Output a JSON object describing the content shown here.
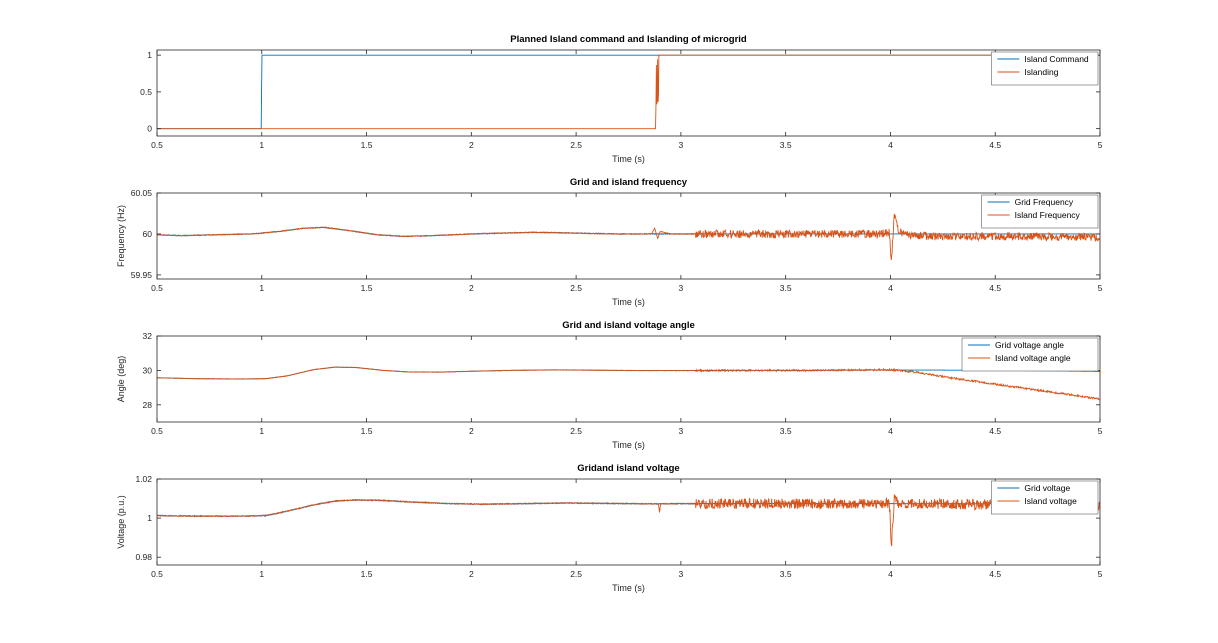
{
  "figure": {
    "background": "#ffffff"
  },
  "palette": {
    "series_blue": "#0072BD",
    "series_orange": "#D95319",
    "axis_color": "#262626",
    "title_color": "#000000",
    "legend_border": "#777777",
    "legend_background": "#ffffff"
  },
  "chart_data": [
    {
      "id": "island-command",
      "type": "line",
      "title": "Planned Island command and Islanding of microgrid",
      "xlabel": "Time (s)",
      "ylabel": "",
      "xlim": [
        0.5,
        5
      ],
      "ylim": [
        -0.1,
        1.07
      ],
      "xticks": [
        0.5,
        1,
        1.5,
        2,
        2.5,
        3,
        3.5,
        4,
        4.5,
        5
      ],
      "xtick_labels": [
        "0.5",
        "1",
        "1.5",
        "2",
        "2.5",
        "3",
        "3.5",
        "4",
        "4.5",
        "5"
      ],
      "yticks": [
        0,
        0.5,
        1
      ],
      "ytick_labels": [
        "0",
        "0.5",
        "1"
      ],
      "legend": {
        "position": "top-right",
        "entries": [
          "Island Command",
          "Islanding"
        ]
      },
      "grid": false,
      "series": [
        {
          "name": "Island Command",
          "color": "#0072BD",
          "seed": 11,
          "points": [
            [
              0.5,
              0
            ],
            [
              0.998,
              0
            ],
            [
              1.0,
              1
            ],
            [
              5,
              1
            ]
          ]
        },
        {
          "name": "Islanding",
          "color": "#D95319",
          "seed": 12,
          "points": [
            [
              0.5,
              0
            ],
            [
              2.88,
              0
            ],
            [
              2.883,
              0.88
            ],
            [
              2.886,
              0.06
            ],
            [
              2.889,
              0.97
            ],
            [
              2.892,
              0.12
            ],
            [
              2.895,
              1
            ],
            [
              5,
              1
            ]
          ]
        }
      ]
    },
    {
      "id": "frequency",
      "type": "line",
      "title": "Grid and island  frequency",
      "xlabel": "Time (s)",
      "ylabel": "Frequency (Hz)",
      "xlim": [
        0.5,
        5
      ],
      "ylim": [
        59.945,
        60.05
      ],
      "xticks": [
        0.5,
        1,
        1.5,
        2,
        2.5,
        3,
        3.5,
        4,
        4.5,
        5
      ],
      "xtick_labels": [
        "0.5",
        "1",
        "1.5",
        "2",
        "2.5",
        "3",
        "3.5",
        "4",
        "4.5",
        "5"
      ],
      "yticks": [
        59.95,
        60,
        60.05
      ],
      "ytick_labels": [
        "59.95",
        "60",
        "60.05"
      ],
      "legend": {
        "position": "top-right",
        "entries": [
          "Grid Frequency",
          "Island Frequency"
        ]
      },
      "grid": false,
      "series": [
        {
          "name": "Grid Frequency",
          "color": "#0072BD",
          "seed": 21,
          "points": [
            [
              0.5,
              59.999
            ],
            [
              0.62,
              59.998
            ],
            [
              0.78,
              59.999
            ],
            [
              0.95,
              60.0
            ],
            [
              1.08,
              60.003
            ],
            [
              1.2,
              60.007
            ],
            [
              1.3,
              60.008
            ],
            [
              1.42,
              60.004
            ],
            [
              1.55,
              59.999
            ],
            [
              1.68,
              59.997
            ],
            [
              1.82,
              59.998
            ],
            [
              2.0,
              60.0
            ],
            [
              2.15,
              60.001
            ],
            [
              2.3,
              60.002
            ],
            [
              2.5,
              60.001
            ],
            [
              2.7,
              60.0
            ],
            [
              2.85,
              60.0
            ],
            [
              3.0,
              60.0
            ],
            [
              3.5,
              60.0
            ],
            [
              4.0,
              60.0
            ],
            [
              4.5,
              60.0
            ],
            [
              5.0,
              60.0
            ]
          ],
          "noise": [
            {
              "from": 0.5,
              "to": 3.1,
              "amp": 0.0005
            }
          ]
        },
        {
          "name": "Island Frequency",
          "color": "#D95319",
          "seed": 22,
          "points": [
            [
              0.5,
              59.999
            ],
            [
              0.62,
              59.998
            ],
            [
              0.78,
              59.999
            ],
            [
              0.95,
              60.0
            ],
            [
              1.08,
              60.003
            ],
            [
              1.2,
              60.007
            ],
            [
              1.3,
              60.008
            ],
            [
              1.42,
              60.004
            ],
            [
              1.55,
              59.999
            ],
            [
              1.68,
              59.997
            ],
            [
              1.82,
              59.998
            ],
            [
              2.0,
              60.0
            ],
            [
              2.15,
              60.001
            ],
            [
              2.3,
              60.002
            ],
            [
              2.5,
              60.001
            ],
            [
              2.7,
              60.0
            ],
            [
              2.86,
              60.0
            ],
            [
              2.875,
              60.007
            ],
            [
              2.89,
              59.994
            ],
            [
              2.9,
              60.003
            ],
            [
              2.95,
              60.0
            ],
            [
              3.05,
              60.0
            ],
            [
              3.95,
              60.0
            ],
            [
              3.995,
              60.002
            ],
            [
              4.005,
              59.966
            ],
            [
              4.018,
              60.024
            ],
            [
              4.035,
              60.006
            ],
            [
              4.06,
              59.999
            ],
            [
              4.2,
              59.997
            ],
            [
              4.6,
              59.997
            ],
            [
              5.0,
              59.996
            ]
          ],
          "noise": [
            {
              "from": 0.5,
              "to": 3.07,
              "amp": 0.0005
            },
            {
              "from": 3.07,
              "to": 5,
              "amp": 0.0048
            }
          ]
        }
      ]
    },
    {
      "id": "voltage-angle",
      "type": "line",
      "title": "Grid and island voltage angle",
      "xlabel": "Time (s)",
      "ylabel": "Angle (deg)",
      "xlim": [
        0.5,
        5
      ],
      "ylim": [
        27,
        32
      ],
      "xticks": [
        0.5,
        1,
        1.5,
        2,
        2.5,
        3,
        3.5,
        4,
        4.5,
        5
      ],
      "xtick_labels": [
        "0.5",
        "1",
        "1.5",
        "2",
        "2.5",
        "3",
        "3.5",
        "4",
        "4.5",
        "5"
      ],
      "yticks": [
        28,
        30,
        32
      ],
      "ytick_labels": [
        "28",
        "30",
        "32"
      ],
      "legend": {
        "position": "top-right",
        "entries": [
          "Grid voltage angle",
          "Island voltage angle"
        ]
      },
      "grid": false,
      "series": [
        {
          "name": "Grid voltage angle",
          "color": "#0072BD",
          "seed": 31,
          "points": [
            [
              0.5,
              29.57
            ],
            [
              0.68,
              29.52
            ],
            [
              0.9,
              29.5
            ],
            [
              1.02,
              29.52
            ],
            [
              1.12,
              29.68
            ],
            [
              1.25,
              30.05
            ],
            [
              1.35,
              30.19
            ],
            [
              1.45,
              30.17
            ],
            [
              1.58,
              30.0
            ],
            [
              1.7,
              29.91
            ],
            [
              1.85,
              29.9
            ],
            [
              2.0,
              29.95
            ],
            [
              2.18,
              30.0
            ],
            [
              2.4,
              30.03
            ],
            [
              2.6,
              30.01
            ],
            [
              2.8,
              29.99
            ],
            [
              3.0,
              29.99
            ],
            [
              3.3,
              30.0
            ],
            [
              3.6,
              30.0
            ],
            [
              3.9,
              30.02
            ],
            [
              4.2,
              30.02
            ],
            [
              4.6,
              29.99
            ],
            [
              5.0,
              29.94
            ]
          ],
          "noise": [
            {
              "from": 0.5,
              "to": 3.1,
              "amp": 0.01
            }
          ]
        },
        {
          "name": "Island voltage angle",
          "color": "#D95319",
          "seed": 32,
          "points": [
            [
              0.5,
              29.57
            ],
            [
              0.68,
              29.52
            ],
            [
              0.9,
              29.5
            ],
            [
              1.02,
              29.52
            ],
            [
              1.12,
              29.68
            ],
            [
              1.25,
              30.05
            ],
            [
              1.35,
              30.19
            ],
            [
              1.45,
              30.17
            ],
            [
              1.58,
              30.0
            ],
            [
              1.7,
              29.91
            ],
            [
              1.85,
              29.9
            ],
            [
              2.0,
              29.95
            ],
            [
              2.18,
              30.0
            ],
            [
              2.4,
              30.03
            ],
            [
              2.6,
              30.01
            ],
            [
              2.8,
              29.99
            ],
            [
              3.0,
              29.99
            ],
            [
              3.3,
              30.0
            ],
            [
              3.6,
              30.0
            ],
            [
              3.9,
              30.03
            ],
            [
              4.0,
              30.04
            ],
            [
              4.12,
              29.9
            ],
            [
              4.3,
              29.55
            ],
            [
              4.5,
              29.2
            ],
            [
              4.7,
              28.85
            ],
            [
              4.85,
              28.6
            ],
            [
              5.0,
              28.33
            ]
          ],
          "noise": [
            {
              "from": 0.5,
              "to": 3.07,
              "amp": 0.012
            },
            {
              "from": 3.07,
              "to": 5,
              "amp": 0.05
            }
          ]
        }
      ]
    },
    {
      "id": "voltage",
      "type": "line",
      "title": "Gridand island  voltage",
      "xlabel": "Time (s)",
      "ylabel": "Voltage (p.u.)",
      "xlim": [
        0.5,
        5
      ],
      "ylim": [
        0.976,
        1.02
      ],
      "xticks": [
        0.5,
        1,
        1.5,
        2,
        2.5,
        3,
        3.5,
        4,
        4.5,
        5
      ],
      "xtick_labels": [
        "0.5",
        "1",
        "1.5",
        "2",
        "2.5",
        "3",
        "3.5",
        "4",
        "4.5",
        "5"
      ],
      "yticks": [
        0.98,
        1,
        1.02
      ],
      "ytick_labels": [
        "0.98",
        "1",
        "1.02"
      ],
      "legend": {
        "position": "top-right",
        "entries": [
          "Grid voltage",
          "Island voltage"
        ]
      },
      "grid": false,
      "series": [
        {
          "name": "Grid voltage",
          "color": "#0072BD",
          "seed": 41,
          "points": [
            [
              0.5,
              1.0013
            ],
            [
              0.68,
              1.001
            ],
            [
              0.92,
              1.001
            ],
            [
              1.02,
              1.0013
            ],
            [
              1.12,
              1.0035
            ],
            [
              1.25,
              1.0068
            ],
            [
              1.35,
              1.0087
            ],
            [
              1.45,
              1.0093
            ],
            [
              1.58,
              1.009
            ],
            [
              1.72,
              1.0082
            ],
            [
              1.9,
              1.0074
            ],
            [
              2.05,
              1.0071
            ],
            [
              2.25,
              1.0074
            ],
            [
              2.45,
              1.0077
            ],
            [
              2.65,
              1.0075
            ],
            [
              2.85,
              1.0073
            ],
            [
              3.1,
              1.0074
            ],
            [
              3.6,
              1.0074
            ],
            [
              4.0,
              1.0074
            ],
            [
              4.5,
              1.0073
            ],
            [
              5.0,
              1.0073
            ]
          ],
          "noise": [
            {
              "from": 0.5,
              "to": 3.1,
              "amp": 0.00025
            }
          ]
        },
        {
          "name": "Island voltage",
          "color": "#D95319",
          "seed": 42,
          "points": [
            [
              0.5,
              1.0013
            ],
            [
              0.68,
              1.001
            ],
            [
              0.92,
              1.001
            ],
            [
              1.02,
              1.0013
            ],
            [
              1.12,
              1.0035
            ],
            [
              1.25,
              1.0068
            ],
            [
              1.35,
              1.0087
            ],
            [
              1.45,
              1.0093
            ],
            [
              1.58,
              1.009
            ],
            [
              1.72,
              1.0082
            ],
            [
              1.9,
              1.0074
            ],
            [
              2.05,
              1.0071
            ],
            [
              2.25,
              1.0074
            ],
            [
              2.45,
              1.0077
            ],
            [
              2.65,
              1.0075
            ],
            [
              2.85,
              1.0073
            ],
            [
              2.893,
              1.0073
            ],
            [
              2.898,
              1.0028
            ],
            [
              2.903,
              1.0073
            ],
            [
              3.05,
              1.0074
            ],
            [
              3.95,
              1.0073
            ],
            [
              3.995,
              1.0076
            ],
            [
              4.005,
              0.9856
            ],
            [
              4.018,
              1.0096
            ],
            [
              4.04,
              1.0073
            ],
            [
              4.4,
              1.007
            ],
            [
              5.0,
              1.0068
            ]
          ],
          "noise": [
            {
              "from": 0.5,
              "to": 3.07,
              "amp": 0.00025
            },
            {
              "from": 3.07,
              "to": 5,
              "amp": 0.0026
            }
          ]
        }
      ]
    }
  ]
}
